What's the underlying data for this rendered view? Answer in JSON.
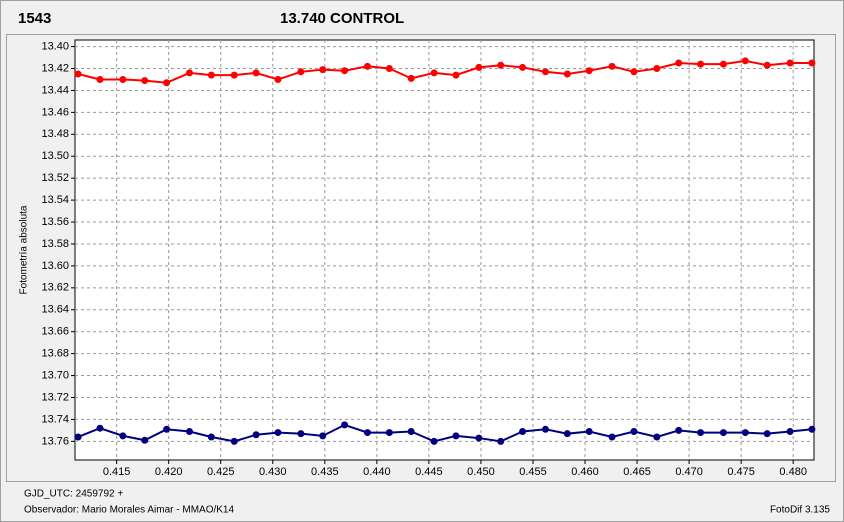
{
  "chart_data": {
    "type": "line",
    "ylabel": "Fotometría absoluta",
    "footer": [
      "GJD_UTC: 2459792 +",
      "Observador: Mario Morales Aimar - MMAO/K14"
    ],
    "software": "FotoDif 3.135",
    "x": [
      0.4113,
      0.4134,
      0.4156,
      0.4177,
      0.4198,
      0.422,
      0.4241,
      0.4263,
      0.4284,
      0.4305,
      0.4327,
      0.4348,
      0.4369,
      0.4391,
      0.4412,
      0.4433,
      0.4455,
      0.4476,
      0.4498,
      0.4519,
      0.454,
      0.4562,
      0.4583,
      0.4604,
      0.4626,
      0.4647,
      0.4669,
      0.469,
      0.4711,
      0.4733,
      0.4754,
      0.4775,
      0.4797,
      0.4818
    ],
    "series": [
      {
        "name": "1543",
        "color": "#ff0000",
        "values": [
          13.425,
          13.43,
          13.43,
          13.431,
          13.433,
          13.424,
          13.426,
          13.426,
          13.424,
          13.43,
          13.423,
          13.421,
          13.422,
          13.418,
          13.42,
          13.429,
          13.424,
          13.426,
          13.419,
          13.417,
          13.419,
          13.423,
          13.425,
          13.422,
          13.418,
          13.423,
          13.42,
          13.415,
          13.416,
          13.416,
          13.413,
          13.417,
          13.415,
          13.415
        ]
      },
      {
        "name": "13.740 CONTROL",
        "color": "#000080",
        "values": [
          13.756,
          13.748,
          13.755,
          13.759,
          13.749,
          13.751,
          13.756,
          13.76,
          13.754,
          13.752,
          13.753,
          13.755,
          13.745,
          13.752,
          13.752,
          13.751,
          13.76,
          13.755,
          13.757,
          13.76,
          13.751,
          13.749,
          13.753,
          13.751,
          13.756,
          13.751,
          13.756,
          13.75,
          13.752,
          13.752,
          13.752,
          13.753,
          13.751,
          13.749
        ]
      }
    ],
    "xlim": [
      0.411,
      0.482
    ],
    "xticks": [
      0.415,
      {
        "value": 0.42,
        "label": "0.420"
      },
      0.425,
      {
        "value": 0.43,
        "label": "0.430"
      },
      0.435,
      {
        "value": 0.44,
        "label": "0.440"
      },
      0.445,
      {
        "value": 0.45,
        "label": "0.450"
      },
      0.455,
      {
        "value": 0.46,
        "label": "0.460"
      },
      0.465,
      {
        "value": 0.47,
        "label": "0.470"
      },
      0.475,
      {
        "value": 0.48,
        "label": "0.480"
      }
    ],
    "ylim": [
      13.394,
      13.777
    ],
    "y_inverted": true,
    "yticks": [
      {
        "value": 13.4,
        "label": "13.40"
      },
      13.42,
      13.44,
      13.46,
      13.48,
      {
        "value": 13.5,
        "label": "13.50"
      },
      13.52,
      13.54,
      13.56,
      13.58,
      {
        "value": 13.6,
        "label": "13.60"
      },
      13.62,
      13.64,
      13.66,
      13.68,
      {
        "value": 13.7,
        "label": "13.70"
      },
      13.72,
      13.74,
      13.76
    ],
    "grid": true
  }
}
